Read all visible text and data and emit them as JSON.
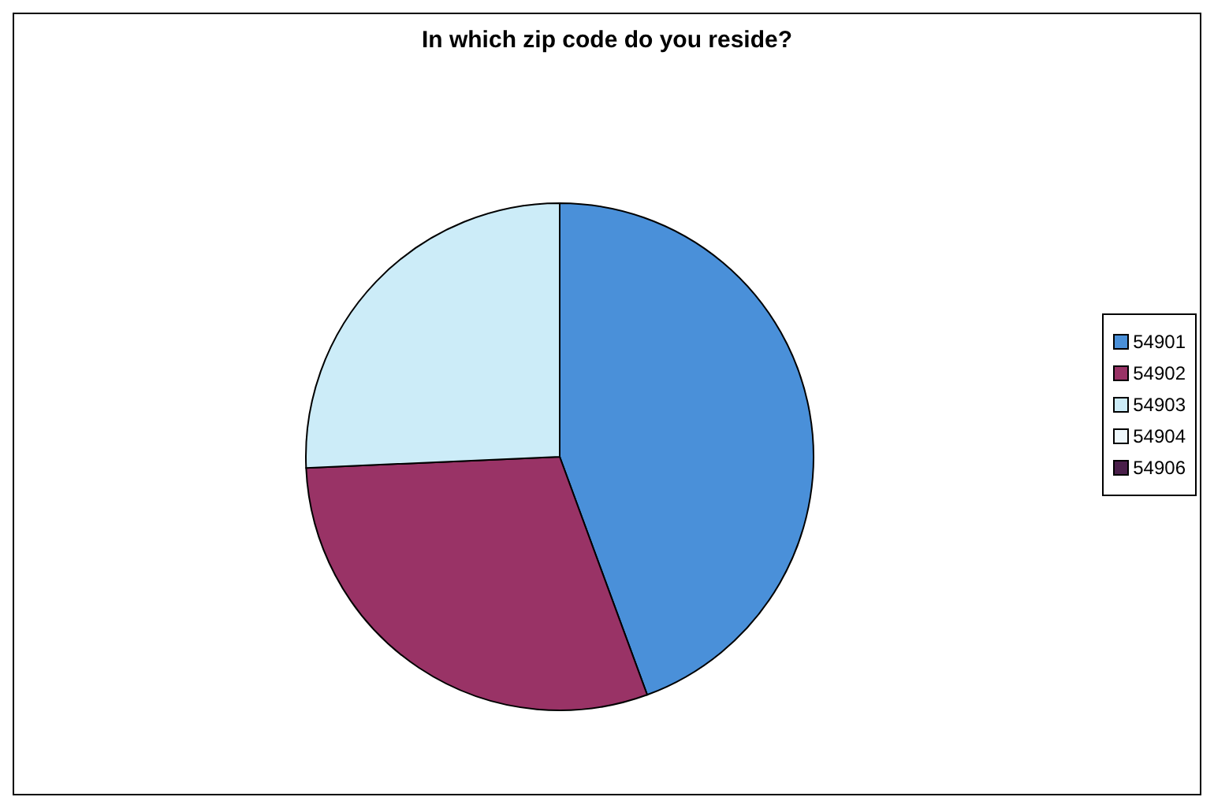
{
  "chart_data": {
    "type": "pie",
    "title": "In which zip code do you reside?",
    "categories": [
      "54901",
      "54902",
      "54903",
      "54904",
      "54906"
    ],
    "values": [
      44.4,
      29.9,
      25.7,
      0,
      0
    ],
    "colors": [
      "#4a90d9",
      "#993366",
      "#ccecf8",
      "#eef8fc",
      "#4a1f4a"
    ],
    "legend": "right"
  }
}
